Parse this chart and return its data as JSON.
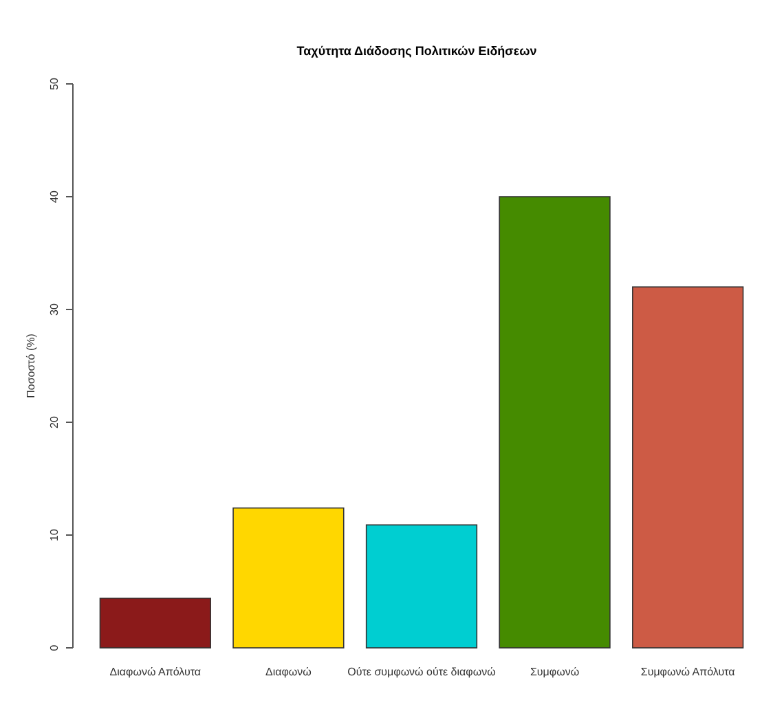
{
  "chart_data": {
    "type": "bar",
    "title": "Ταχύτητα Διάδοσης Πολιτικών Ειδήσεων",
    "ylabel": "Ποσοστό (%)",
    "categories": [
      "Διαφωνώ Απόλυτα",
      "Διαφωνώ",
      "Ούτε συμφωνώ ούτε διαφωνώ",
      "Συμφωνώ",
      "Συμφωνώ Απόλυτα"
    ],
    "values": [
      4.4,
      12.4,
      10.9,
      40,
      32
    ],
    "colors": [
      "#8b1a1a",
      "#ffd700",
      "#00ced1",
      "#458b00",
      "#cd5b45"
    ],
    "ylim": [
      0,
      50
    ],
    "yticks": [
      0,
      10,
      20,
      30,
      40,
      50
    ]
  }
}
